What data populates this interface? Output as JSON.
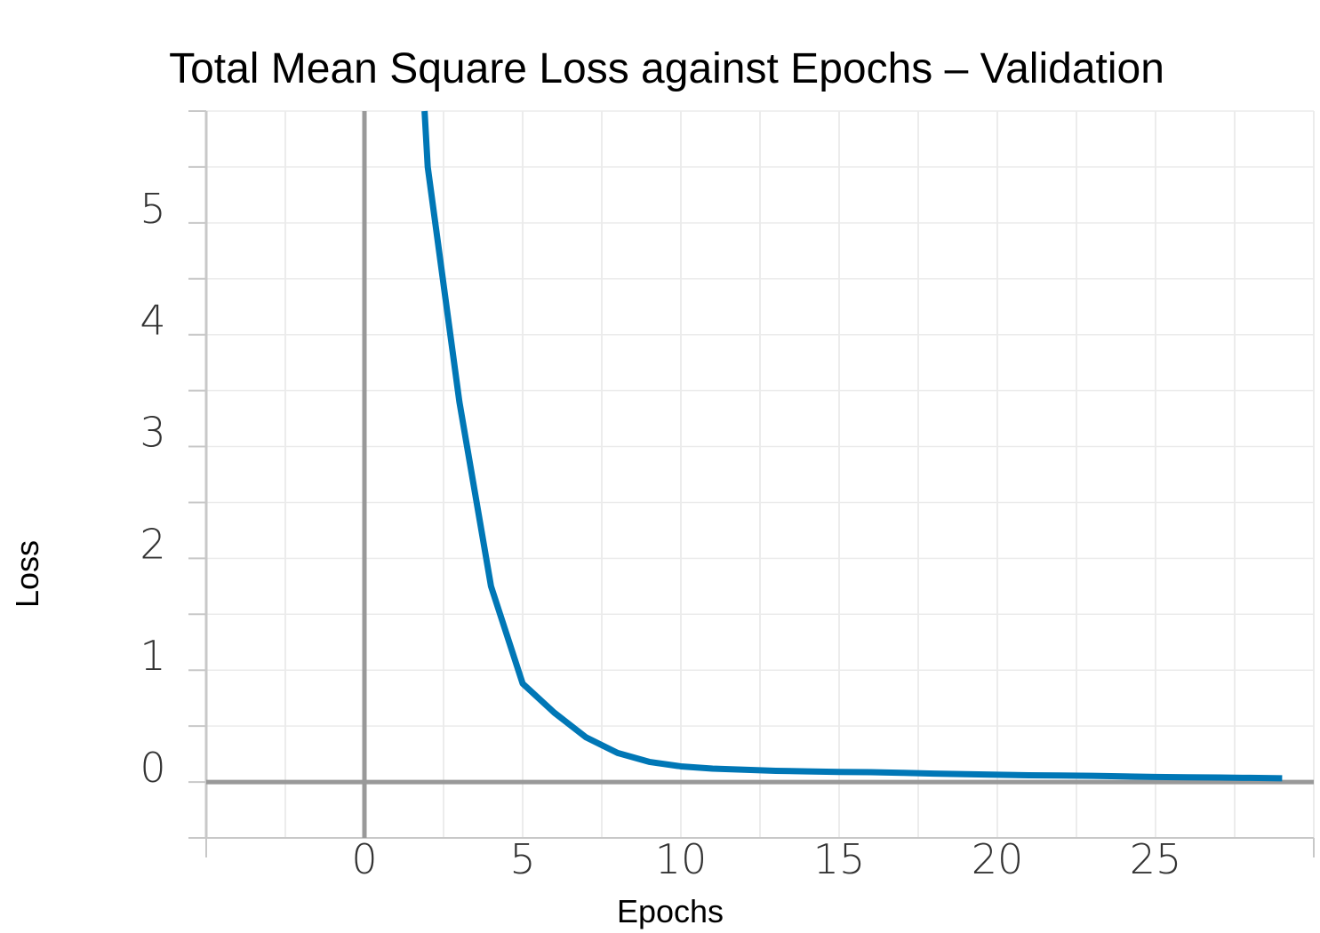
{
  "chart_data": {
    "type": "line",
    "title": "Total Mean Square Loss against Epochs – Validation",
    "xlabel": "Epochs",
    "ylabel": "Loss",
    "xlim": [
      -5,
      30
    ],
    "ylim": [
      -0.5,
      6
    ],
    "x_ticks": [
      "0",
      "5",
      "10",
      "15",
      "20",
      "25"
    ],
    "y_ticks": [
      "0",
      "1",
      "2",
      "3",
      "4",
      "5"
    ],
    "grid": true,
    "series": [
      {
        "color": "#0077b6",
        "x": [
          1.9,
          2,
          3,
          4,
          5,
          6,
          7,
          8,
          9,
          10,
          11,
          12,
          13,
          14,
          15,
          16,
          17,
          18,
          19,
          20,
          21,
          22,
          23,
          24,
          25,
          26,
          27,
          28,
          29
        ],
        "y": [
          6.0,
          5.5,
          3.4,
          1.75,
          0.88,
          0.62,
          0.4,
          0.26,
          0.18,
          0.14,
          0.12,
          0.11,
          0.1,
          0.095,
          0.09,
          0.088,
          0.082,
          0.075,
          0.07,
          0.065,
          0.06,
          0.058,
          0.055,
          0.05,
          0.045,
          0.042,
          0.04,
          0.037,
          0.033
        ]
      }
    ]
  }
}
